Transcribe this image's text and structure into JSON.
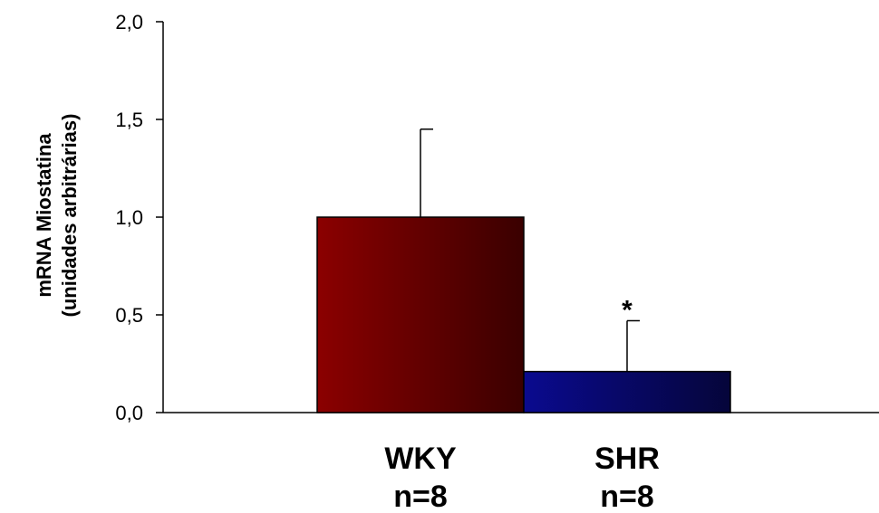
{
  "chart_data": {
    "type": "bar",
    "ylabel_lines": [
      "mRNA Miostatina",
      "(unidades arbitrárias)"
    ],
    "y_ticks": [
      "2,0",
      "1,5",
      "1,0",
      "0,5",
      "0,0"
    ],
    "ylim": [
      0,
      2.0
    ],
    "grid": false,
    "legend": "none",
    "categories": [
      {
        "label": "WKY",
        "n_label": "n=8"
      },
      {
        "label": "SHR",
        "n_label": "n=8"
      }
    ],
    "values": [
      1.0,
      0.21
    ],
    "error_upper": [
      0.45,
      0.26
    ],
    "significance": [
      "",
      "*"
    ],
    "colors": [
      {
        "start": "#8b0000",
        "end": "#3a0000"
      },
      {
        "start": "#0a0a8f",
        "end": "#05053a"
      }
    ]
  }
}
